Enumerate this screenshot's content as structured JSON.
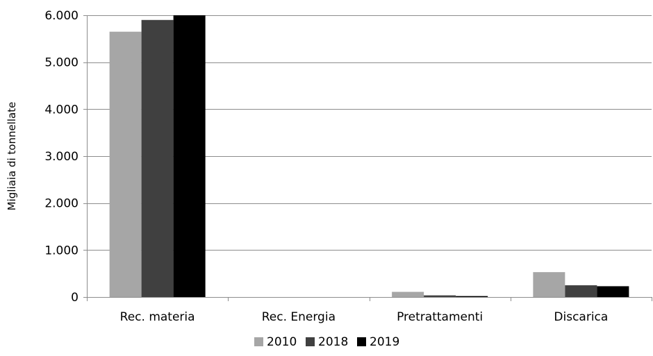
{
  "chart_data": {
    "type": "bar",
    "title": "",
    "xlabel": "",
    "ylabel": "Migliaia di tonnellate",
    "categories": [
      "Rec. materia",
      "Rec. Energia",
      "Pretrattamenti",
      "Discarica"
    ],
    "series": [
      {
        "name": "2010",
        "color": "#a6a6a6",
        "values": [
          5650,
          0,
          110,
          530
        ]
      },
      {
        "name": "2018",
        "color": "#404040",
        "values": [
          5900,
          0,
          35,
          250
        ]
      },
      {
        "name": "2019",
        "color": "#000000",
        "values": [
          6000,
          0,
          20,
          230
        ]
      }
    ],
    "ylim": [
      0,
      6000
    ],
    "yticks": [
      0,
      1000,
      2000,
      3000,
      4000,
      5000,
      6000
    ],
    "ytick_labels": [
      "0",
      "1.000",
      "2.000",
      "3.000",
      "4.000",
      "5.000",
      "6.000"
    ],
    "grid": true,
    "legend_position": "bottom"
  }
}
